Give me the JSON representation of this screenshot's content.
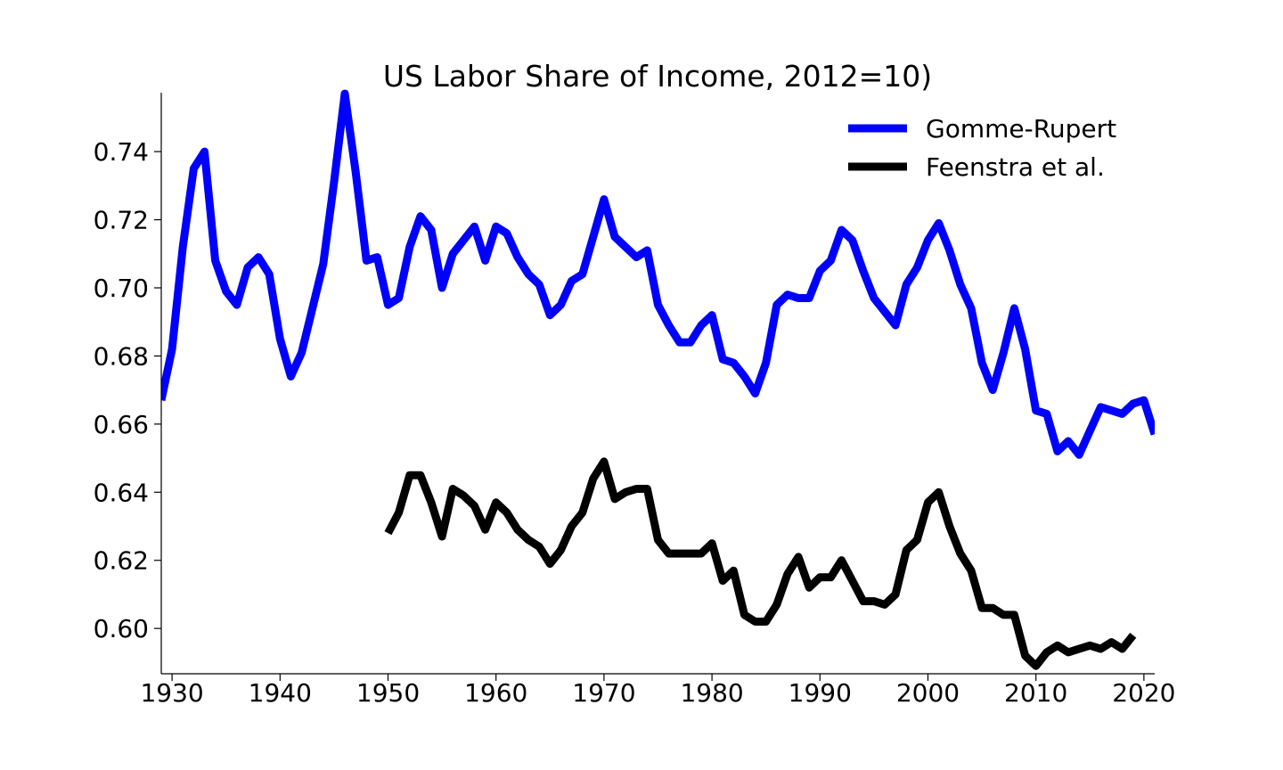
{
  "chart_data": {
    "type": "line",
    "title": "US Labor Share of Income, 2012=10)",
    "xlabel": "",
    "ylabel": "",
    "xlim": [
      1929,
      2021
    ],
    "ylim": [
      0.5867,
      0.7573
    ],
    "xticks": [
      1930,
      1940,
      1950,
      1960,
      1970,
      1980,
      1990,
      2000,
      2010,
      2020
    ],
    "yticks": [
      0.6,
      0.62,
      0.64,
      0.66,
      0.68,
      0.7,
      0.72,
      0.74
    ],
    "ytick_labels": [
      "0.60",
      "0.62",
      "0.64",
      "0.66",
      "0.68",
      "0.70",
      "0.72",
      "0.74"
    ],
    "xtick_labels": [
      "1930",
      "1940",
      "1950",
      "1960",
      "1970",
      "1980",
      "1990",
      "2000",
      "2010",
      "2020"
    ],
    "grid": false,
    "legend_position": "top-right",
    "series": [
      {
        "name": "Gomme-Rupert",
        "color": "#0000ff",
        "x": [
          1929,
          1930,
          1931,
          1932,
          1933,
          1934,
          1935,
          1936,
          1937,
          1938,
          1939,
          1940,
          1941,
          1942,
          1943,
          1944,
          1945,
          1946,
          1947,
          1948,
          1949,
          1950,
          1951,
          1952,
          1953,
          1954,
          1955,
          1956,
          1957,
          1958,
          1959,
          1960,
          1961,
          1962,
          1963,
          1964,
          1965,
          1966,
          1967,
          1968,
          1969,
          1970,
          1971,
          1972,
          1973,
          1974,
          1975,
          1976,
          1977,
          1978,
          1979,
          1980,
          1981,
          1982,
          1983,
          1984,
          1985,
          1986,
          1987,
          1988,
          1989,
          1990,
          1991,
          1992,
          1993,
          1994,
          1995,
          1996,
          1997,
          1998,
          1999,
          2000,
          2001,
          2002,
          2003,
          2004,
          2005,
          2006,
          2007,
          2008,
          2009,
          2010,
          2011,
          2012,
          2013,
          2014,
          2015,
          2016,
          2017,
          2018,
          2019,
          2020,
          2021
        ],
        "y": [
          0.667,
          0.682,
          0.712,
          0.735,
          0.74,
          0.708,
          0.699,
          0.695,
          0.706,
          0.709,
          0.704,
          0.685,
          0.674,
          0.681,
          0.694,
          0.707,
          0.731,
          0.757,
          0.734,
          0.708,
          0.709,
          0.695,
          0.697,
          0.712,
          0.721,
          0.717,
          0.7,
          0.71,
          0.714,
          0.718,
          0.708,
          0.718,
          0.716,
          0.709,
          0.704,
          0.701,
          0.692,
          0.695,
          0.702,
          0.704,
          0.715,
          0.726,
          0.715,
          0.712,
          0.709,
          0.711,
          0.695,
          0.689,
          0.684,
          0.684,
          0.689,
          0.692,
          0.679,
          0.678,
          0.674,
          0.669,
          0.678,
          0.695,
          0.698,
          0.697,
          0.697,
          0.705,
          0.708,
          0.717,
          0.714,
          0.705,
          0.697,
          0.693,
          0.689,
          0.701,
          0.706,
          0.714,
          0.719,
          0.711,
          0.701,
          0.694,
          0.678,
          0.67,
          0.681,
          0.694,
          0.682,
          0.664,
          0.663,
          0.652,
          0.655,
          0.651,
          0.658,
          0.665,
          0.664,
          0.663,
          0.666,
          0.667,
          0.657
        ]
      },
      {
        "name": "Feenstra et al.",
        "color": "#000000",
        "x": [
          1950,
          1951,
          1952,
          1953,
          1954,
          1955,
          1956,
          1957,
          1958,
          1959,
          1960,
          1961,
          1962,
          1963,
          1964,
          1965,
          1966,
          1967,
          1968,
          1969,
          1970,
          1971,
          1972,
          1973,
          1974,
          1975,
          1976,
          1977,
          1978,
          1979,
          1980,
          1981,
          1982,
          1983,
          1984,
          1985,
          1986,
          1987,
          1988,
          1989,
          1990,
          1991,
          1992,
          1993,
          1994,
          1995,
          1996,
          1997,
          1998,
          1999,
          2000,
          2001,
          2002,
          2003,
          2004,
          2005,
          2006,
          2007,
          2008,
          2009,
          2010,
          2011,
          2012,
          2013,
          2014,
          2015,
          2016,
          2017,
          2018,
          2019
        ],
        "y": [
          0.628,
          0.634,
          0.645,
          0.645,
          0.637,
          0.627,
          0.641,
          0.639,
          0.636,
          0.629,
          0.637,
          0.634,
          0.629,
          0.626,
          0.624,
          0.619,
          0.623,
          0.63,
          0.634,
          0.644,
          0.649,
          0.638,
          0.64,
          0.641,
          0.641,
          0.626,
          0.622,
          0.622,
          0.622,
          0.622,
          0.625,
          0.614,
          0.617,
          0.604,
          0.602,
          0.602,
          0.607,
          0.616,
          0.621,
          0.612,
          0.615,
          0.615,
          0.62,
          0.614,
          0.608,
          0.608,
          0.607,
          0.61,
          0.623,
          0.626,
          0.637,
          0.64,
          0.63,
          0.622,
          0.617,
          0.606,
          0.606,
          0.604,
          0.604,
          0.592,
          0.589,
          0.593,
          0.595,
          0.593,
          0.594,
          0.595,
          0.594,
          0.596,
          0.594,
          0.598
        ]
      }
    ]
  }
}
